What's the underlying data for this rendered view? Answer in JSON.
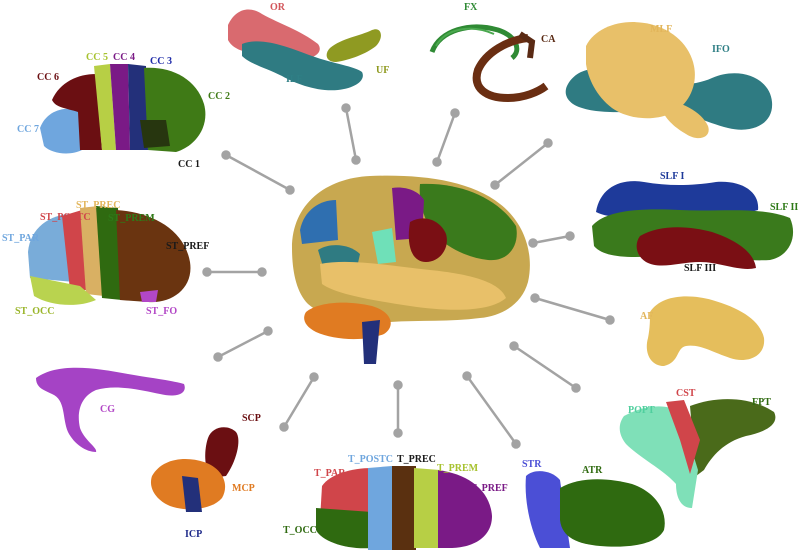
{
  "colors": {
    "connector": "#a3a3a3",
    "background": "#ffffff"
  },
  "labels": {
    "or": {
      "text": "OR",
      "color": "#d2555a"
    },
    "uf": {
      "text": "UF",
      "color": "#8f9a1f"
    },
    "ilf": {
      "text": "ILF",
      "color": "#2f7f85"
    },
    "fx": {
      "text": "FX",
      "color": "#2f8a34"
    },
    "ca": {
      "text": "CA",
      "color": "#5a2a14"
    },
    "mlf": {
      "text": "MLF",
      "color": "#e2b55a"
    },
    "ifo": {
      "text": "IFO",
      "color": "#2f7f85"
    },
    "cc1": {
      "text": "CC 1",
      "color": "#1a1a1a"
    },
    "cc2": {
      "text": "CC 2",
      "color": "#3f7a16"
    },
    "cc3": {
      "text": "CC 3",
      "color": "#1e2aa8"
    },
    "cc4": {
      "text": "CC 4",
      "color": "#7a1a86"
    },
    "cc5": {
      "text": "CC 5",
      "color": "#a7c22f"
    },
    "cc6": {
      "text": "CC 6",
      "color": "#6b0f12"
    },
    "cc7": {
      "text": "CC 7",
      "color": "#6fa6de"
    },
    "slf1": {
      "text": "SLF I",
      "color": "#1e3a9a"
    },
    "slf2": {
      "text": "SLF II",
      "color": "#2f7a18"
    },
    "slf3": {
      "text": "SLF III",
      "color": "#1a1a1a"
    },
    "st_prec": {
      "text": "ST_PREC",
      "color": "#e2b55a"
    },
    "st_postc": {
      "text": "ST_POSTC",
      "color": "#d0454a"
    },
    "st_prem": {
      "text": "ST_PREM",
      "color": "#2f7a18"
    },
    "st_par": {
      "text": "ST_PAR",
      "color": "#6fa6de"
    },
    "st_pref": {
      "text": "ST_PREF",
      "color": "#1a1a1a"
    },
    "st_occ": {
      "text": "ST_OCC",
      "color": "#9ab52a"
    },
    "st_fo": {
      "text": "ST_FO",
      "color": "#b247c6"
    },
    "af": {
      "text": "AF",
      "color": "#e2b55a"
    },
    "cg": {
      "text": "CG",
      "color": "#b247c6"
    },
    "scp": {
      "text": "SCP",
      "color": "#6b0f12"
    },
    "mcp": {
      "text": "MCP",
      "color": "#e07b22"
    },
    "icp": {
      "text": "ICP",
      "color": "#1e2a8a"
    },
    "cst": {
      "text": "CST",
      "color": "#d0454a"
    },
    "popt": {
      "text": "POPT",
      "color": "#4fcf9e"
    },
    "fpt": {
      "text": "FPT",
      "color": "#2f6a10"
    },
    "t_postc": {
      "text": "T_POSTC",
      "color": "#6fa6de"
    },
    "t_prec": {
      "text": "T_PREC",
      "color": "#1a1a1a"
    },
    "t_par": {
      "text": "T_PAR",
      "color": "#d0454a"
    },
    "t_prem": {
      "text": "T_PREM",
      "color": "#a7c22f"
    },
    "t_pref": {
      "text": "T_PREF",
      "color": "#7a1a86"
    },
    "t_occ": {
      "text": "T_OCC",
      "color": "#2f6a10"
    },
    "str": {
      "text": "STR",
      "color": "#4b4fd6"
    },
    "atr": {
      "text": "ATR",
      "color": "#2f6a10"
    }
  }
}
